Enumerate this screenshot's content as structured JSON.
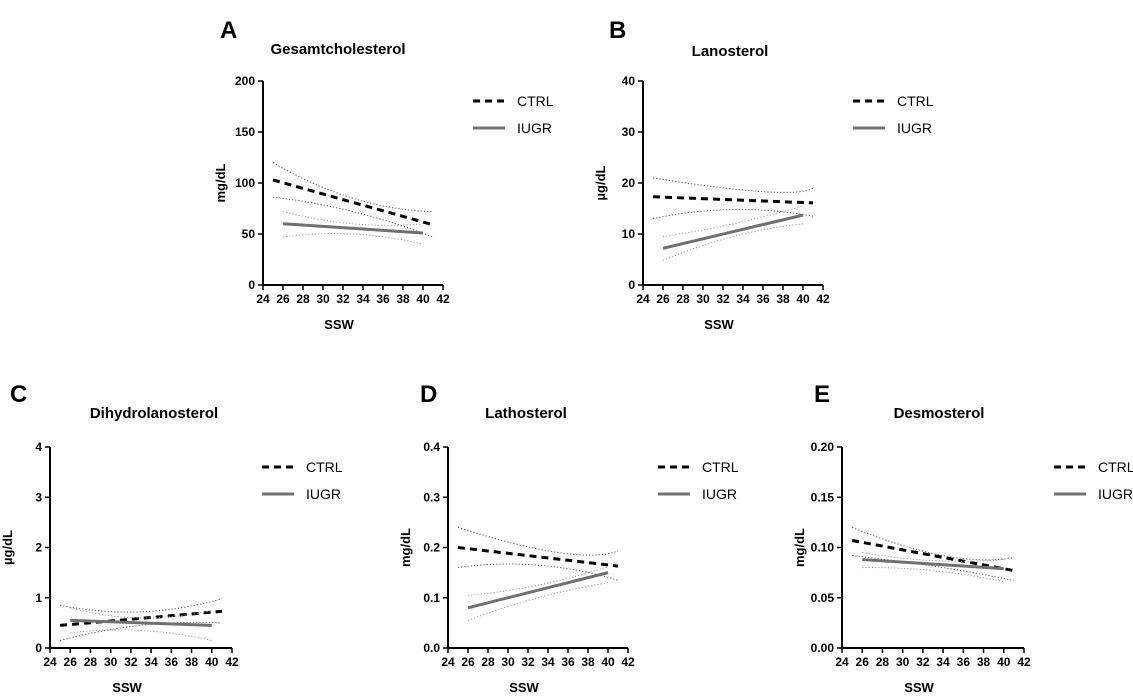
{
  "chart_data": [
    {
      "panel": "A",
      "type": "line",
      "title": "Gesamtcholesterol",
      "xlabel": "SSW",
      "ylabel": "mg/dL",
      "xlim": [
        24,
        42
      ],
      "ylim": [
        0,
        200
      ],
      "xticks": [
        "24",
        "26",
        "28",
        "30",
        "32",
        "34",
        "36",
        "38",
        "40",
        "42"
      ],
      "yticks": [
        "0",
        "50",
        "100",
        "150",
        "200"
      ],
      "legend": "right",
      "series": [
        {
          "name": "CTRL",
          "style": "dashed",
          "color": "#000000",
          "x": [
            25,
            41
          ],
          "y": [
            103,
            59
          ],
          "ci_upper": {
            "x": [
              25,
              33,
              41
            ],
            "y": [
              120,
              85,
              72
            ]
          },
          "ci_lower": {
            "x": [
              25,
              33,
              41
            ],
            "y": [
              86,
              72,
              47
            ]
          }
        },
        {
          "name": "IUGR",
          "style": "solid",
          "color": "#707070",
          "x": [
            26,
            40
          ],
          "y": [
            60,
            51
          ],
          "ci_upper": {
            "x": [
              26,
              33,
              40
            ],
            "y": [
              72,
              60,
              60
            ]
          },
          "ci_lower": {
            "x": [
              26,
              33,
              40
            ],
            "y": [
              47,
              50,
              40
            ]
          }
        }
      ]
    },
    {
      "panel": "B",
      "type": "line",
      "title": "Lanosterol",
      "xlabel": "SSW",
      "ylabel": "µg/dL",
      "xlim": [
        24,
        42
      ],
      "ylim": [
        0,
        40
      ],
      "xticks": [
        "24",
        "26",
        "28",
        "30",
        "32",
        "34",
        "36",
        "38",
        "40",
        "42"
      ],
      "yticks": [
        "0",
        "10",
        "20",
        "30",
        "40"
      ],
      "legend": "right",
      "series": [
        {
          "name": "CTRL",
          "style": "dashed",
          "color": "#000000",
          "x": [
            25,
            41
          ],
          "y": [
            17.3,
            16.1
          ],
          "ci_upper": {
            "x": [
              25,
              36,
              41
            ],
            "y": [
              21,
              18.3,
              19
            ]
          },
          "ci_lower": {
            "x": [
              25,
              33,
              41
            ],
            "y": [
              13,
              14.8,
              13.5
            ]
          }
        },
        {
          "name": "IUGR",
          "style": "solid",
          "color": "#707070",
          "x": [
            26,
            40
          ],
          "y": [
            7.2,
            13.7
          ],
          "ci_upper": {
            "x": [
              26,
              33,
              40
            ],
            "y": [
              9.5,
              12,
              15.5
            ]
          },
          "ci_lower": {
            "x": [
              26,
              33,
              40
            ],
            "y": [
              4.8,
              9.5,
              12
            ]
          }
        }
      ]
    },
    {
      "panel": "C",
      "type": "line",
      "title": "Dihydrolanosterol",
      "xlabel": "SSW",
      "ylabel": "µg/dL",
      "xlim": [
        24,
        42
      ],
      "ylim": [
        0,
        4
      ],
      "xticks": [
        "24",
        "26",
        "28",
        "30",
        "32",
        "34",
        "36",
        "38",
        "40",
        "42"
      ],
      "yticks": [
        "0",
        "1",
        "2",
        "3",
        "4"
      ],
      "legend": "right",
      "series": [
        {
          "name": "CTRL",
          "style": "dashed",
          "color": "#000000",
          "x": [
            25,
            41
          ],
          "y": [
            0.45,
            0.73
          ],
          "ci_upper": {
            "x": [
              25,
              33,
              41
            ],
            "y": [
              0.85,
              0.72,
              0.98
            ]
          },
          "ci_lower": {
            "x": [
              25,
              33,
              41
            ],
            "y": [
              0.15,
              0.45,
              0.5
            ]
          }
        },
        {
          "name": "IUGR",
          "style": "solid",
          "color": "#707070",
          "x": [
            26,
            40
          ],
          "y": [
            0.55,
            0.45
          ],
          "ci_upper": {
            "x": [
              26,
              33,
              40
            ],
            "y": [
              0.8,
              0.6,
              0.75
            ]
          },
          "ci_lower": {
            "x": [
              26,
              33,
              40
            ],
            "y": [
              0.3,
              0.35,
              0.15
            ]
          }
        }
      ]
    },
    {
      "panel": "D",
      "type": "line",
      "title": "Lathosterol",
      "xlabel": "SSW",
      "ylabel": "mg/dL",
      "xlim": [
        24,
        42
      ],
      "ylim": [
        0,
        0.4
      ],
      "xticks": [
        "24",
        "26",
        "28",
        "30",
        "32",
        "34",
        "36",
        "38",
        "40",
        "42"
      ],
      "yticks": [
        "0.0",
        "0.1",
        "0.2",
        "0.3",
        "0.4"
      ],
      "legend": "right",
      "series": [
        {
          "name": "CTRL",
          "style": "dashed",
          "color": "#000000",
          "x": [
            25,
            41
          ],
          "y": [
            0.2,
            0.163
          ],
          "ci_upper": {
            "x": [
              25,
              35,
              41
            ],
            "y": [
              0.24,
              0.19,
              0.193
            ]
          },
          "ci_lower": {
            "x": [
              25,
              33,
              41
            ],
            "y": [
              0.16,
              0.165,
              0.135
            ]
          }
        },
        {
          "name": "IUGR",
          "style": "solid",
          "color": "#707070",
          "x": [
            26,
            40
          ],
          "y": [
            0.08,
            0.15
          ],
          "ci_upper": {
            "x": [
              26,
              33,
              40
            ],
            "y": [
              0.105,
              0.125,
              0.162
            ]
          },
          "ci_lower": {
            "x": [
              26,
              33,
              40
            ],
            "y": [
              0.055,
              0.1,
              0.13
            ]
          }
        }
      ]
    },
    {
      "panel": "E",
      "type": "line",
      "title": "Desmosterol",
      "xlabel": "SSW",
      "ylabel": "mg/dL",
      "xlim": [
        24,
        42
      ],
      "ylim": [
        0,
        0.2
      ],
      "xticks": [
        "24",
        "26",
        "28",
        "30",
        "32",
        "34",
        "36",
        "38",
        "40",
        "42"
      ],
      "yticks": [
        "0.00",
        "0.05",
        "0.10",
        "0.15",
        "0.20"
      ],
      "legend": "right",
      "series": [
        {
          "name": "CTRL",
          "style": "dashed",
          "color": "#000000",
          "x": [
            25,
            41
          ],
          "y": [
            0.107,
            0.077
          ],
          "ci_upper": {
            "x": [
              25,
              34,
              41
            ],
            "y": [
              0.12,
              0.092,
              0.09
            ]
          },
          "ci_lower": {
            "x": [
              25,
              34,
              41
            ],
            "y": [
              0.092,
              0.08,
              0.067
            ]
          }
        },
        {
          "name": "IUGR",
          "style": "solid",
          "color": "#707070",
          "x": [
            26,
            40
          ],
          "y": [
            0.088,
            0.079
          ],
          "ci_upper": {
            "x": [
              26,
              33,
              40
            ],
            "y": [
              0.095,
              0.087,
              0.088
            ]
          },
          "ci_lower": {
            "x": [
              26,
              33,
              40
            ],
            "y": [
              0.08,
              0.077,
              0.066
            ]
          }
        }
      ]
    }
  ]
}
